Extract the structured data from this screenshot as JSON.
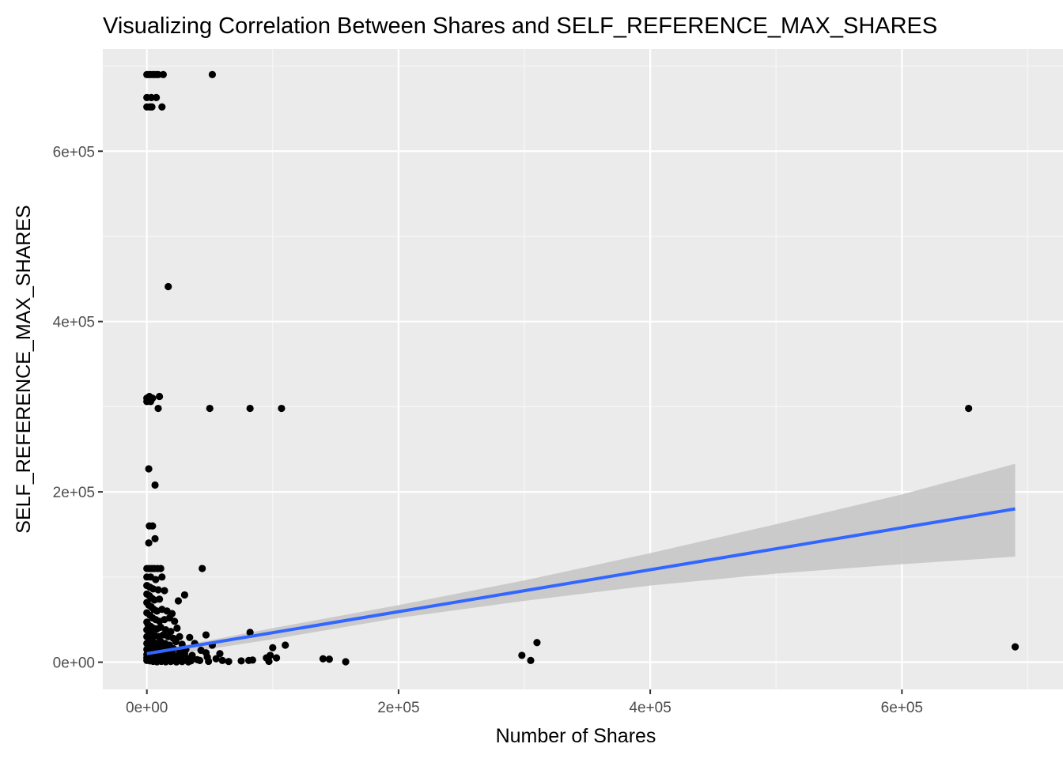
{
  "chart_data": {
    "type": "scatter",
    "title": "Visualizing Correlation Between Shares and SELF_REFERENCE_MAX_SHARES",
    "xlabel": "Number of Shares",
    "ylabel": "SELF_REFERENCE_MAX_SHARES",
    "xlim": [
      -35000,
      728000
    ],
    "ylim": [
      -32000,
      720000
    ],
    "x_ticks": [
      0,
      200000,
      400000,
      600000
    ],
    "x_tick_labels": [
      "0e+00",
      "2e+05",
      "4e+05",
      "6e+05"
    ],
    "y_ticks": [
      0,
      200000,
      400000,
      600000
    ],
    "y_tick_labels": [
      "0e+00",
      "2e+05",
      "4e+05",
      "6e+05"
    ],
    "grid": true,
    "legend": "none",
    "colors": {
      "panel_background": "#ebebeb",
      "grid_major": "#ffffff",
      "grid_minor": "#f7f7f7",
      "points": "#000000",
      "trend_line": "#3366ff",
      "confidence_band": "#c6c6c6",
      "tick_label": "#4d4d4d",
      "tick_mark": "#333333"
    },
    "points": [
      [
        0,
        690000
      ],
      [
        1500,
        690000
      ],
      [
        3000,
        690000
      ],
      [
        4500,
        690000
      ],
      [
        6000,
        690000
      ],
      [
        7500,
        690000
      ],
      [
        9000,
        690000
      ],
      [
        13000,
        690000
      ],
      [
        52000,
        690000
      ],
      [
        0,
        663000
      ],
      [
        3500,
        663000
      ],
      [
        7500,
        663000
      ],
      [
        0,
        652000
      ],
      [
        2500,
        652000
      ],
      [
        4000,
        652000
      ],
      [
        12000,
        652000
      ],
      [
        17000,
        441000
      ],
      [
        0,
        310000
      ],
      [
        2000,
        312000
      ],
      [
        4500,
        310000
      ],
      [
        10000,
        312000
      ],
      [
        0,
        306000
      ],
      [
        3000,
        306000
      ],
      [
        9000,
        298000
      ],
      [
        50000,
        298000
      ],
      [
        82000,
        298000
      ],
      [
        107000,
        298000
      ],
      [
        653000,
        298000
      ],
      [
        1500,
        227000
      ],
      [
        6500,
        208000
      ],
      [
        2000,
        160000
      ],
      [
        4500,
        160000
      ],
      [
        6500,
        145000
      ],
      [
        1500,
        140000
      ],
      [
        0,
        110000
      ],
      [
        2000,
        110000
      ],
      [
        4000,
        110000
      ],
      [
        6000,
        110000
      ],
      [
        8500,
        110000
      ],
      [
        11000,
        110000
      ],
      [
        44000,
        110000
      ],
      [
        0,
        100000
      ],
      [
        3000,
        100000
      ],
      [
        7000,
        97000
      ],
      [
        12000,
        100000
      ],
      [
        0,
        90000
      ],
      [
        2500,
        88000
      ],
      [
        5000,
        86000
      ],
      [
        9000,
        85000
      ],
      [
        14000,
        84000
      ],
      [
        0,
        80000
      ],
      [
        2000,
        78000
      ],
      [
        4000,
        75000
      ],
      [
        6000,
        73000
      ],
      [
        10000,
        74000
      ],
      [
        30000,
        79000
      ],
      [
        25000,
        72000
      ],
      [
        0,
        70000
      ],
      [
        1500,
        67000
      ],
      [
        3500,
        65000
      ],
      [
        5500,
        62000
      ],
      [
        8000,
        60000
      ],
      [
        12000,
        62000
      ],
      [
        16000,
        60000
      ],
      [
        20000,
        57000
      ],
      [
        0,
        58000
      ],
      [
        2500,
        55000
      ],
      [
        4500,
        52000
      ],
      [
        7000,
        50000
      ],
      [
        10000,
        48000
      ],
      [
        14000,
        50000
      ],
      [
        18000,
        52000
      ],
      [
        22000,
        48000
      ],
      [
        0,
        47000
      ],
      [
        1000,
        44000
      ],
      [
        3000,
        42000
      ],
      [
        5000,
        40000
      ],
      [
        8000,
        39000
      ],
      [
        11000,
        41000
      ],
      [
        15000,
        38000
      ],
      [
        19000,
        36000
      ],
      [
        24000,
        40000
      ],
      [
        0,
        38000
      ],
      [
        2000,
        35000
      ],
      [
        4000,
        33000
      ],
      [
        6500,
        31000
      ],
      [
        9500,
        30000
      ],
      [
        13000,
        32000
      ],
      [
        17000,
        30000
      ],
      [
        21000,
        28000
      ],
      [
        26000,
        30000
      ],
      [
        34000,
        29000
      ],
      [
        47000,
        32000
      ],
      [
        82000,
        35000
      ],
      [
        0,
        30000
      ],
      [
        1500,
        27000
      ],
      [
        3500,
        25000
      ],
      [
        5500,
        23000
      ],
      [
        8000,
        22000
      ],
      [
        11000,
        24000
      ],
      [
        14500,
        22000
      ],
      [
        18000,
        20000
      ],
      [
        23000,
        24000
      ],
      [
        28000,
        21000
      ],
      [
        38000,
        22000
      ],
      [
        52000,
        20000
      ],
      [
        0,
        22000
      ],
      [
        2000,
        19000
      ],
      [
        4500,
        17000
      ],
      [
        7000,
        16000
      ],
      [
        10000,
        18000
      ],
      [
        13500,
        15000
      ],
      [
        17000,
        14000
      ],
      [
        21000,
        16000
      ],
      [
        26000,
        13000
      ],
      [
        31000,
        15000
      ],
      [
        43000,
        14000
      ],
      [
        100000,
        17000
      ],
      [
        110000,
        20000
      ],
      [
        0,
        15000
      ],
      [
        1500,
        13000
      ],
      [
        3500,
        12000
      ],
      [
        6000,
        11000
      ],
      [
        9000,
        12000
      ],
      [
        12000,
        10000
      ],
      [
        16000,
        9000
      ],
      [
        20000,
        11000
      ],
      [
        25000,
        8000
      ],
      [
        30000,
        10000
      ],
      [
        36000,
        8000
      ],
      [
        47000,
        11000
      ],
      [
        58000,
        10000
      ],
      [
        0,
        9000
      ],
      [
        2000,
        8000
      ],
      [
        4000,
        7000
      ],
      [
        6500,
        6000
      ],
      [
        9500,
        7000
      ],
      [
        13000,
        5000
      ],
      [
        17000,
        6000
      ],
      [
        22000,
        4000
      ],
      [
        27000,
        5000
      ],
      [
        33000,
        4000
      ],
      [
        40000,
        3000
      ],
      [
        48000,
        6000
      ],
      [
        55000,
        4000
      ],
      [
        0,
        5000
      ],
      [
        1500,
        4000
      ],
      [
        3500,
        3000
      ],
      [
        6000,
        2500
      ],
      [
        9000,
        3000
      ],
      [
        12500,
        2000
      ],
      [
        16000,
        1500
      ],
      [
        20000,
        2500
      ],
      [
        24000,
        1000
      ],
      [
        29000,
        2000
      ],
      [
        35000,
        1500
      ],
      [
        42000,
        2000
      ],
      [
        49000,
        1000
      ],
      [
        0,
        2000
      ],
      [
        2500,
        1500
      ],
      [
        5000,
        1000
      ],
      [
        8000,
        500
      ],
      [
        11500,
        1000
      ],
      [
        15000,
        500
      ],
      [
        19000,
        800
      ],
      [
        23500,
        300
      ],
      [
        28000,
        700
      ],
      [
        33000,
        400
      ],
      [
        60000,
        2000
      ],
      [
        65000,
        800
      ],
      [
        75000,
        1500
      ],
      [
        81000,
        2000
      ],
      [
        84000,
        2500
      ],
      [
        95000,
        5000
      ],
      [
        97000,
        1000
      ],
      [
        98000,
        8000
      ],
      [
        103000,
        5000
      ],
      [
        140000,
        4000
      ],
      [
        145000,
        3500
      ],
      [
        158000,
        500
      ],
      [
        298000,
        8000
      ],
      [
        305000,
        2000
      ],
      [
        310000,
        23000
      ],
      [
        690000,
        18000
      ]
    ],
    "trend_line": {
      "x": [
        0,
        690000
      ],
      "y": [
        10000,
        180000
      ]
    },
    "confidence_band": {
      "x": [
        0,
        30000,
        100000,
        200000,
        300000,
        400000,
        500000,
        600000,
        690000
      ],
      "upper": [
        14000,
        20000,
        40000,
        67000,
        96000,
        128000,
        162000,
        197000,
        233000
      ],
      "lower": [
        6000,
        11000,
        27000,
        52000,
        72000,
        90000,
        104000,
        115000,
        124000
      ]
    }
  }
}
